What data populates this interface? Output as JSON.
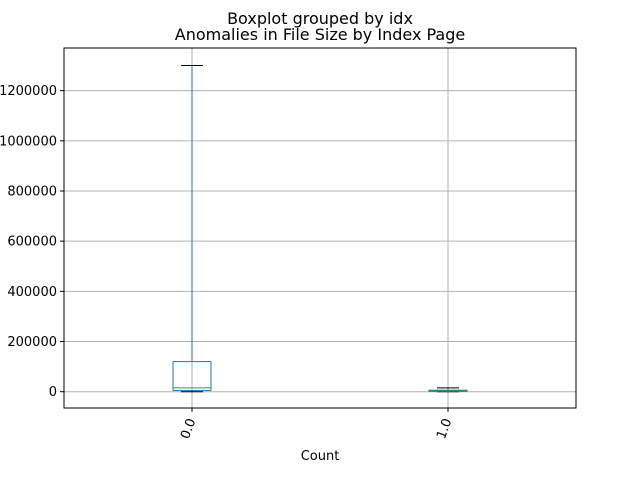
{
  "chart_data": {
    "type": "boxplot",
    "suptitle": "Boxplot grouped by idx",
    "title": "Anomalies in File Size by Index Page",
    "xlabel": "Count",
    "ylabel": "",
    "categories": [
      "0.0",
      "1.0"
    ],
    "boxes": [
      {
        "category": "0.0",
        "whisker_low": 0,
        "q1": 5000,
        "median": 15000,
        "q3": 120000,
        "whisker_high": 1300000
      },
      {
        "category": "1.0",
        "whisker_low": 0,
        "q1": 1500,
        "median": 3500,
        "q3": 6000,
        "whisker_high": 15000
      }
    ],
    "ylim": [
      -65000,
      1370000
    ],
    "yticks": [
      0,
      200000,
      400000,
      600000,
      800000,
      1000000,
      1200000
    ],
    "ytick_labels": [
      "0",
      "200000",
      "400000",
      "600000",
      "800000",
      "1000000",
      "1200000"
    ],
    "grid": true,
    "colors": {
      "box": "#1f77b4",
      "median": "#2ca02c",
      "whisker": "#1f77b4",
      "cap": "#000000",
      "grid": "#b0b0b0",
      "frame": "#000000"
    }
  }
}
